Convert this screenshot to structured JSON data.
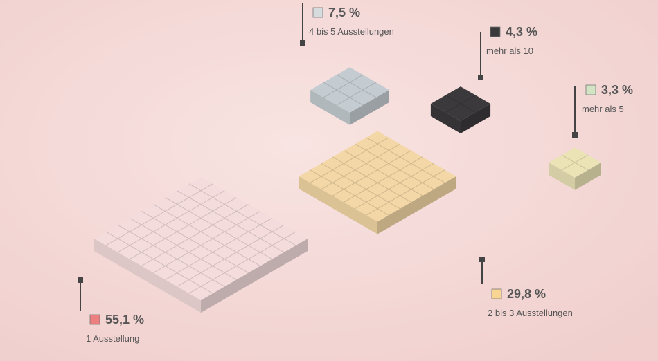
{
  "chart_data": {
    "type": "isometric",
    "categories": [
      "1 Ausstellung",
      "2 bis 3 Ausstellungen",
      "4 bis 5 Ausstellungen",
      "mehr als 10",
      "mehr als 5"
    ],
    "values": [
      55.1,
      29.8,
      7.5,
      4.3,
      3.3
    ],
    "value_labels": [
      "55,1 %",
      "29,8 %",
      "7,5 %",
      "4,3 %",
      "3,3 %"
    ],
    "colors": [
      "#ec7f7f",
      "#f8d593",
      "#d6dbde",
      "#3a3a3a",
      "#d3e4c4"
    ],
    "block_colors": [
      "#f4dcdc",
      "#f3d7a6",
      "#c5ccd1",
      "#3b393b",
      "#ebe3b6"
    ]
  }
}
